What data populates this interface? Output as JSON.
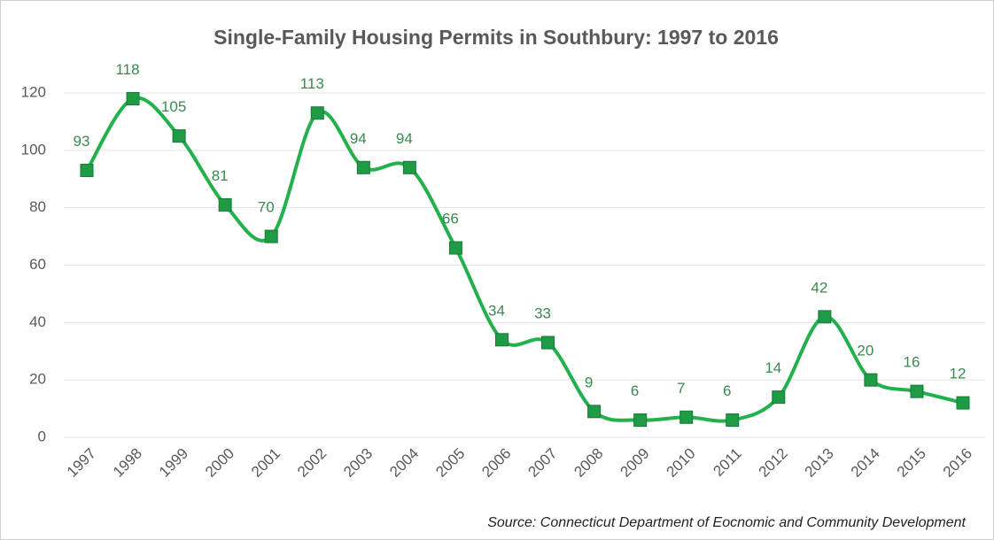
{
  "chart_data": {
    "type": "line",
    "title": "Single-Family Housing Permits in Southbury: 1997 to 2016",
    "source": "Source: Connecticut Department of Eocnomic and Community Development",
    "categories": [
      "1997",
      "1998",
      "1999",
      "2000",
      "2001",
      "2002",
      "2003",
      "2004",
      "2005",
      "2006",
      "2007",
      "2008",
      "2009",
      "2010",
      "2011",
      "2012",
      "2013",
      "2014",
      "2015",
      "2016"
    ],
    "series": [
      {
        "name": "Single-Family Housing Permits",
        "color": "#22b14c",
        "marker_color": "#1f9a45",
        "values": [
          93,
          118,
          105,
          81,
          70,
          113,
          94,
          94,
          66,
          34,
          33,
          9,
          6,
          7,
          6,
          14,
          42,
          20,
          16,
          12
        ]
      }
    ],
    "ylim": [
      0,
      120
    ],
    "yticks": [
      0,
      20,
      40,
      60,
      80,
      100,
      120
    ],
    "grid": true,
    "smooth": true,
    "data_labels": true
  }
}
